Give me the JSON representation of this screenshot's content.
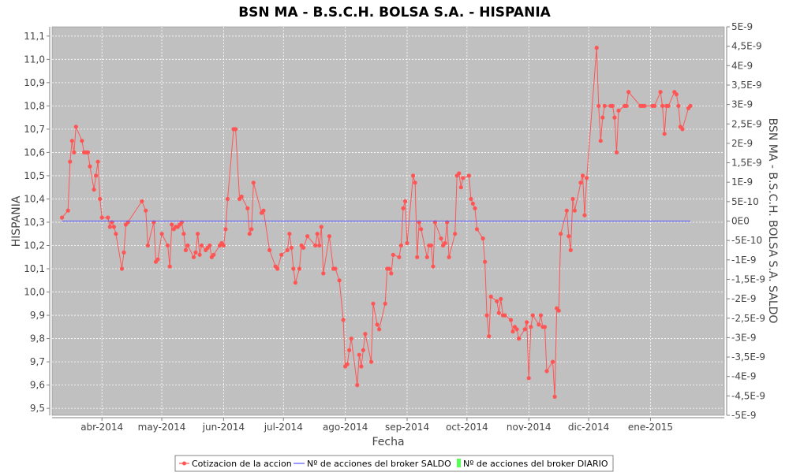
{
  "chart_data": {
    "type": "line",
    "title": "BSN MA - B.S.C.H. BOLSA S.A. - HISPANIA",
    "xlabel": "Fecha",
    "ylabel": "HISPANIA",
    "y2label": "BSN MA - B.S.C.H. BOLSA S.A. SALDO",
    "ylim": [
      9.47,
      11.14
    ],
    "y2lim": [
      -5e-09,
      5e-09
    ],
    "xlim": [
      "2014-03-07",
      "2015-02-07"
    ],
    "y_ticks": [
      "9,5",
      "9,6",
      "9,7",
      "9,8",
      "9,9",
      "10,0",
      "10,1",
      "10,2",
      "10,3",
      "10,4",
      "10,5",
      "10,6",
      "10,7",
      "10,8",
      "10,9",
      "11,0",
      "11,1"
    ],
    "y2_ticks": [
      "-5E-9",
      "-4,5E-9",
      "-4E-9",
      "-3,5E-9",
      "-3E-9",
      "-2,5E-9",
      "-2E-9",
      "-1,5E-9",
      "-1E-9",
      "-5E-10",
      "0E0",
      "5E-10",
      "1E-9",
      "1,5E-9",
      "2E-9",
      "2,5E-9",
      "3E-9",
      "3,5E-9",
      "4E-9",
      "4,5E-9",
      "5E-9"
    ],
    "x_ticks": [
      {
        "date": "2014-04-01",
        "label": "abr-2014"
      },
      {
        "date": "2014-05-01",
        "label": "may-2014"
      },
      {
        "date": "2014-06-01",
        "label": "jun-2014"
      },
      {
        "date": "2014-07-01",
        "label": "jul-2014"
      },
      {
        "date": "2014-08-01",
        "label": "ago-2014"
      },
      {
        "date": "2014-09-01",
        "label": "sep-2014"
      },
      {
        "date": "2014-10-01",
        "label": "oct-2014"
      },
      {
        "date": "2014-11-01",
        "label": "nov-2014"
      },
      {
        "date": "2014-12-01",
        "label": "dic-2014"
      },
      {
        "date": "2015-01-01",
        "label": "ene-2015"
      }
    ],
    "grid": true,
    "legend_position": "bottom",
    "series": [
      {
        "name": "Cotizacion de la accion",
        "color": "#ff5555",
        "axis": "left",
        "points": [
          [
            "2014-03-12",
            10.32
          ],
          [
            "2014-03-15",
            10.35
          ],
          [
            "2014-03-16",
            10.56
          ],
          [
            "2014-03-17",
            10.65
          ],
          [
            "2014-03-18",
            10.6
          ],
          [
            "2014-03-19",
            10.71
          ],
          [
            "2014-03-22",
            10.65
          ],
          [
            "2014-03-23",
            10.6
          ],
          [
            "2014-03-24",
            10.6
          ],
          [
            "2014-03-25",
            10.6
          ],
          [
            "2014-03-26",
            10.54
          ],
          [
            "2014-03-28",
            10.44
          ],
          [
            "2014-03-29",
            10.5
          ],
          [
            "2014-03-30",
            10.56
          ],
          [
            "2014-03-31",
            10.4
          ],
          [
            "2014-04-01",
            10.32
          ],
          [
            "2014-04-04",
            10.32
          ],
          [
            "2014-04-05",
            10.28
          ],
          [
            "2014-04-06",
            10.3
          ],
          [
            "2014-04-07",
            10.28
          ],
          [
            "2014-04-08",
            10.25
          ],
          [
            "2014-04-11",
            10.1
          ],
          [
            "2014-04-12",
            10.17
          ],
          [
            "2014-04-13",
            10.29
          ],
          [
            "2014-04-14",
            10.3
          ],
          [
            "2014-04-21",
            10.39
          ],
          [
            "2014-04-23",
            10.35
          ],
          [
            "2014-04-24",
            10.2
          ],
          [
            "2014-04-27",
            10.3
          ],
          [
            "2014-04-28",
            10.13
          ],
          [
            "2014-04-29",
            10.14
          ],
          [
            "2014-05-01",
            10.25
          ],
          [
            "2014-05-04",
            10.2
          ],
          [
            "2014-05-05",
            10.11
          ],
          [
            "2014-05-06",
            10.29
          ],
          [
            "2014-05-07",
            10.27
          ],
          [
            "2014-05-08",
            10.28
          ],
          [
            "2014-05-09",
            10.28
          ],
          [
            "2014-05-10",
            10.29
          ],
          [
            "2014-05-11",
            10.3
          ],
          [
            "2014-05-12",
            10.25
          ],
          [
            "2014-05-13",
            10.18
          ],
          [
            "2014-05-14",
            10.2
          ],
          [
            "2014-05-17",
            10.15
          ],
          [
            "2014-05-18",
            10.17
          ],
          [
            "2014-05-19",
            10.25
          ],
          [
            "2014-05-20",
            10.16
          ],
          [
            "2014-05-21",
            10.2
          ],
          [
            "2014-05-23",
            10.18
          ],
          [
            "2014-05-24",
            10.19
          ],
          [
            "2014-05-25",
            10.2
          ],
          [
            "2014-05-26",
            10.15
          ],
          [
            "2014-05-27",
            10.16
          ],
          [
            "2014-05-30",
            10.2
          ],
          [
            "2014-05-31",
            10.21
          ],
          [
            "2014-06-01",
            10.2
          ],
          [
            "2014-06-02",
            10.27
          ],
          [
            "2014-06-03",
            10.4
          ],
          [
            "2014-06-06",
            10.7
          ],
          [
            "2014-06-07",
            10.7
          ],
          [
            "2014-06-09",
            10.4
          ],
          [
            "2014-06-10",
            10.41
          ],
          [
            "2014-06-13",
            10.36
          ],
          [
            "2014-06-14",
            10.25
          ],
          [
            "2014-06-15",
            10.27
          ],
          [
            "2014-06-16",
            10.47
          ],
          [
            "2014-06-20",
            10.34
          ],
          [
            "2014-06-21",
            10.35
          ],
          [
            "2014-06-24",
            10.18
          ],
          [
            "2014-06-27",
            10.11
          ],
          [
            "2014-06-28",
            10.1
          ],
          [
            "2014-06-30",
            10.16
          ],
          [
            "2014-07-03",
            10.18
          ],
          [
            "2014-07-04",
            10.25
          ],
          [
            "2014-07-05",
            10.19
          ],
          [
            "2014-07-06",
            10.1
          ],
          [
            "2014-07-07",
            10.04
          ],
          [
            "2014-07-09",
            10.1
          ],
          [
            "2014-07-10",
            10.2
          ],
          [
            "2014-07-11",
            10.19
          ],
          [
            "2014-07-13",
            10.24
          ],
          [
            "2014-07-17",
            10.2
          ],
          [
            "2014-07-18",
            10.25
          ],
          [
            "2014-07-19",
            10.2
          ],
          [
            "2014-07-20",
            10.28
          ],
          [
            "2014-07-21",
            10.08
          ],
          [
            "2014-07-24",
            10.24
          ],
          [
            "2014-07-26",
            10.1
          ],
          [
            "2014-07-27",
            10.1
          ],
          [
            "2014-07-29",
            10.05
          ],
          [
            "2014-07-31",
            9.88
          ],
          [
            "2014-08-01",
            9.68
          ],
          [
            "2014-08-02",
            9.69
          ],
          [
            "2014-08-03",
            9.75
          ],
          [
            "2014-08-04",
            9.8
          ],
          [
            "2014-08-07",
            9.6
          ],
          [
            "2014-08-08",
            9.73
          ],
          [
            "2014-08-09",
            9.68
          ],
          [
            "2014-08-10",
            9.75
          ],
          [
            "2014-08-11",
            9.82
          ],
          [
            "2014-08-14",
            9.7
          ],
          [
            "2014-08-15",
            9.95
          ],
          [
            "2014-08-17",
            9.86
          ],
          [
            "2014-08-18",
            9.84
          ],
          [
            "2014-08-21",
            9.95
          ],
          [
            "2014-08-22",
            10.1
          ],
          [
            "2014-08-23",
            10.1
          ],
          [
            "2014-08-24",
            10.08
          ],
          [
            "2014-08-25",
            10.16
          ],
          [
            "2014-08-28",
            10.15
          ],
          [
            "2014-08-29",
            10.2
          ],
          [
            "2014-08-30",
            10.36
          ],
          [
            "2014-08-31",
            10.39
          ],
          [
            "2014-09-01",
            10.21
          ],
          [
            "2014-09-04",
            10.5
          ],
          [
            "2014-09-05",
            10.47
          ],
          [
            "2014-09-06",
            10.15
          ],
          [
            "2014-09-07",
            10.3
          ],
          [
            "2014-09-08",
            10.27
          ],
          [
            "2014-09-11",
            10.15
          ],
          [
            "2014-09-12",
            10.2
          ],
          [
            "2014-09-13",
            10.2
          ],
          [
            "2014-09-14",
            10.11
          ],
          [
            "2014-09-15",
            10.3
          ],
          [
            "2014-09-18",
            10.23
          ],
          [
            "2014-09-19",
            10.2
          ],
          [
            "2014-09-20",
            10.21
          ],
          [
            "2014-09-21",
            10.3
          ],
          [
            "2014-09-22",
            10.15
          ],
          [
            "2014-09-25",
            10.25
          ],
          [
            "2014-09-26",
            10.5
          ],
          [
            "2014-09-27",
            10.51
          ],
          [
            "2014-09-28",
            10.45
          ],
          [
            "2014-09-29",
            10.49
          ],
          [
            "2014-10-02",
            10.5
          ],
          [
            "2014-10-03",
            10.4
          ],
          [
            "2014-10-04",
            10.38
          ],
          [
            "2014-10-05",
            10.36
          ],
          [
            "2014-10-06",
            10.27
          ],
          [
            "2014-10-09",
            10.23
          ],
          [
            "2014-10-10",
            10.13
          ],
          [
            "2014-10-11",
            9.9
          ],
          [
            "2014-10-12",
            9.81
          ],
          [
            "2014-10-13",
            9.98
          ],
          [
            "2014-10-16",
            9.96
          ],
          [
            "2014-10-17",
            9.91
          ],
          [
            "2014-10-18",
            9.97
          ],
          [
            "2014-10-19",
            9.9
          ],
          [
            "2014-10-20",
            9.9
          ],
          [
            "2014-10-23",
            9.88
          ],
          [
            "2014-10-24",
            9.83
          ],
          [
            "2014-10-25",
            9.85
          ],
          [
            "2014-10-26",
            9.84
          ],
          [
            "2014-10-27",
            9.8
          ],
          [
            "2014-10-30",
            9.84
          ],
          [
            "2014-10-31",
            9.87
          ],
          [
            "2014-11-01",
            9.63
          ],
          [
            "2014-11-02",
            9.85
          ],
          [
            "2014-11-03",
            9.9
          ],
          [
            "2014-11-06",
            9.86
          ],
          [
            "2014-11-07",
            9.9
          ],
          [
            "2014-11-08",
            9.85
          ],
          [
            "2014-11-09",
            9.85
          ],
          [
            "2014-11-10",
            9.66
          ],
          [
            "2014-11-13",
            9.7
          ],
          [
            "2014-11-14",
            9.55
          ],
          [
            "2014-11-15",
            9.93
          ],
          [
            "2014-11-16",
            9.92
          ],
          [
            "2014-11-17",
            10.25
          ],
          [
            "2014-11-20",
            10.35
          ],
          [
            "2014-11-21",
            10.24
          ],
          [
            "2014-11-22",
            10.18
          ],
          [
            "2014-11-23",
            10.4
          ],
          [
            "2014-11-24",
            10.35
          ],
          [
            "2014-11-27",
            10.47
          ],
          [
            "2014-11-28",
            10.5
          ],
          [
            "2014-11-29",
            10.33
          ],
          [
            "2014-11-30",
            10.49
          ],
          [
            "2014-12-05",
            11.05
          ],
          [
            "2014-12-06",
            10.8
          ],
          [
            "2014-12-07",
            10.65
          ],
          [
            "2014-12-08",
            10.75
          ],
          [
            "2014-12-09",
            10.8
          ],
          [
            "2014-12-12",
            10.8
          ],
          [
            "2014-12-13",
            10.8
          ],
          [
            "2014-12-14",
            10.75
          ],
          [
            "2014-12-15",
            10.6
          ],
          [
            "2014-12-16",
            10.78
          ],
          [
            "2014-12-19",
            10.8
          ],
          [
            "2014-12-20",
            10.8
          ],
          [
            "2014-12-21",
            10.86
          ],
          [
            "2014-12-27",
            10.8
          ],
          [
            "2014-12-28",
            10.8
          ],
          [
            "2014-12-29",
            10.8
          ],
          [
            "2015-01-02",
            10.8
          ],
          [
            "2015-01-03",
            10.8
          ],
          [
            "2015-01-06",
            10.86
          ],
          [
            "2015-01-07",
            10.8
          ],
          [
            "2015-01-08",
            10.68
          ],
          [
            "2015-01-09",
            10.8
          ],
          [
            "2015-01-10",
            10.8
          ],
          [
            "2015-01-13",
            10.86
          ],
          [
            "2015-01-14",
            10.85
          ],
          [
            "2015-01-15",
            10.8
          ],
          [
            "2015-01-16",
            10.71
          ],
          [
            "2015-01-17",
            10.7
          ],
          [
            "2015-01-20",
            10.79
          ],
          [
            "2015-01-21",
            10.8
          ]
        ]
      },
      {
        "name": "Nº de acciones del broker SALDO",
        "color": "#5555ff",
        "axis": "right",
        "points": [
          [
            "2014-03-12",
            0
          ],
          [
            "2015-01-21",
            0
          ]
        ]
      },
      {
        "name": "Nº de acciones del broker DIARIO",
        "color": "#55ff55",
        "axis": "right",
        "points": []
      }
    ]
  }
}
